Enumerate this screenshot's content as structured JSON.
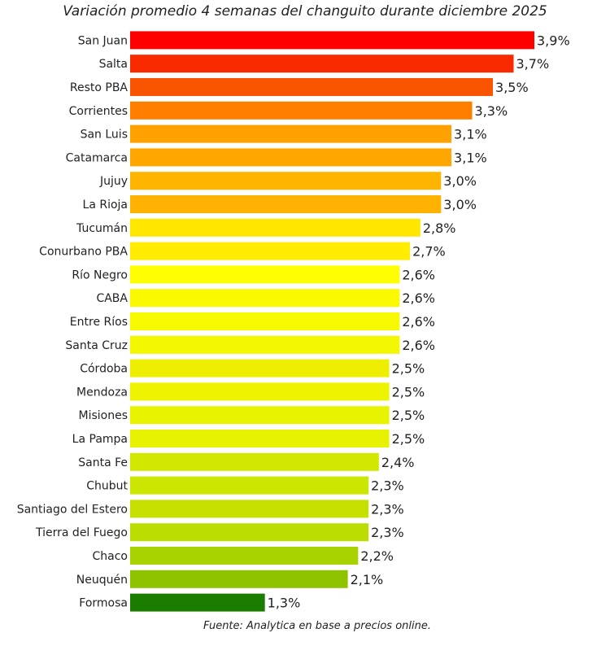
{
  "chart_data": {
    "type": "bar",
    "orientation": "horizontal",
    "title": "Variación promedio 4 semanas del changuito durante diciembre 2025",
    "source": "Fuente: Analytica en base a precios online.",
    "xlim": [
      0,
      3.9
    ],
    "grid": false,
    "categories": [
      "San Juan",
      "Salta",
      "Resto PBA",
      "Corrientes",
      "San Luis",
      "Catamarca",
      "Jujuy",
      "La Rioja",
      "Tucumán",
      "Conurbano PBA",
      "Río Negro",
      "CABA",
      "Entre Ríos",
      "Santa Cruz",
      "Córdoba",
      "Mendoza",
      "Misiones",
      "La Pampa",
      "Santa Fe",
      "Chubut",
      "Santiago del Estero",
      "Tierra del Fuego",
      "Chaco",
      "Neuquén",
      "Formosa"
    ],
    "values": [
      3.9,
      3.7,
      3.5,
      3.3,
      3.1,
      3.1,
      3.0,
      3.0,
      2.8,
      2.7,
      2.6,
      2.6,
      2.6,
      2.6,
      2.5,
      2.5,
      2.5,
      2.5,
      2.4,
      2.3,
      2.3,
      2.3,
      2.2,
      2.1,
      1.3
    ],
    "value_labels": [
      "3,9%",
      "3,7%",
      "3,5%",
      "3,3%",
      "3,1%",
      "3,1%",
      "3,0%",
      "3,0%",
      "2,8%",
      "2,7%",
      "2,6%",
      "2,6%",
      "2,6%",
      "2,6%",
      "2,5%",
      "2,5%",
      "2,5%",
      "2,5%",
      "2,4%",
      "2,3%",
      "2,3%",
      "2,3%",
      "2,2%",
      "2,1%",
      "1,3%"
    ],
    "colors": [
      "#ff0000",
      "#fa2a00",
      "#fb5400",
      "#ff7e00",
      "#ffa200",
      "#ffa600",
      "#ffb500",
      "#ffb100",
      "#ffe700",
      "#ffec00",
      "#ffff00",
      "#fbf900",
      "#f7f900",
      "#f3f700",
      "#eeef00",
      "#eef400",
      "#e8f300",
      "#e6f200",
      "#d3e800",
      "#cbe600",
      "#c6e100",
      "#bddc00",
      "#a9d300",
      "#8fc300",
      "#1b7d00"
    ]
  }
}
